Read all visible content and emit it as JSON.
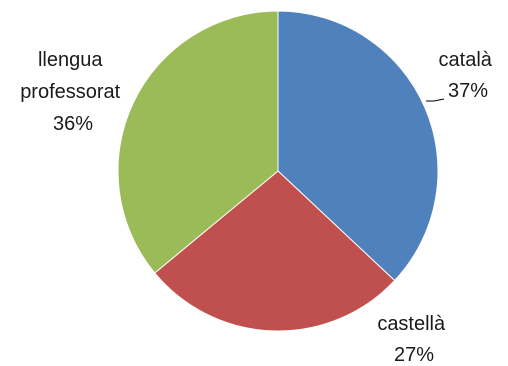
{
  "chart_data": {
    "type": "pie",
    "categories": [
      "català",
      "castellà",
      "llengua professorat"
    ],
    "values": [
      37,
      27,
      36
    ],
    "value_labels": [
      "37%",
      "27%",
      "36%"
    ],
    "category_label_lines": [
      [
        "català"
      ],
      [
        "castellà"
      ],
      [
        "llengua",
        "professorat"
      ]
    ],
    "colors": [
      "#4f81bd",
      "#c0504d",
      "#9bbb59"
    ],
    "start": "12 o'clock",
    "direction": "clockwise",
    "legend": "none"
  }
}
